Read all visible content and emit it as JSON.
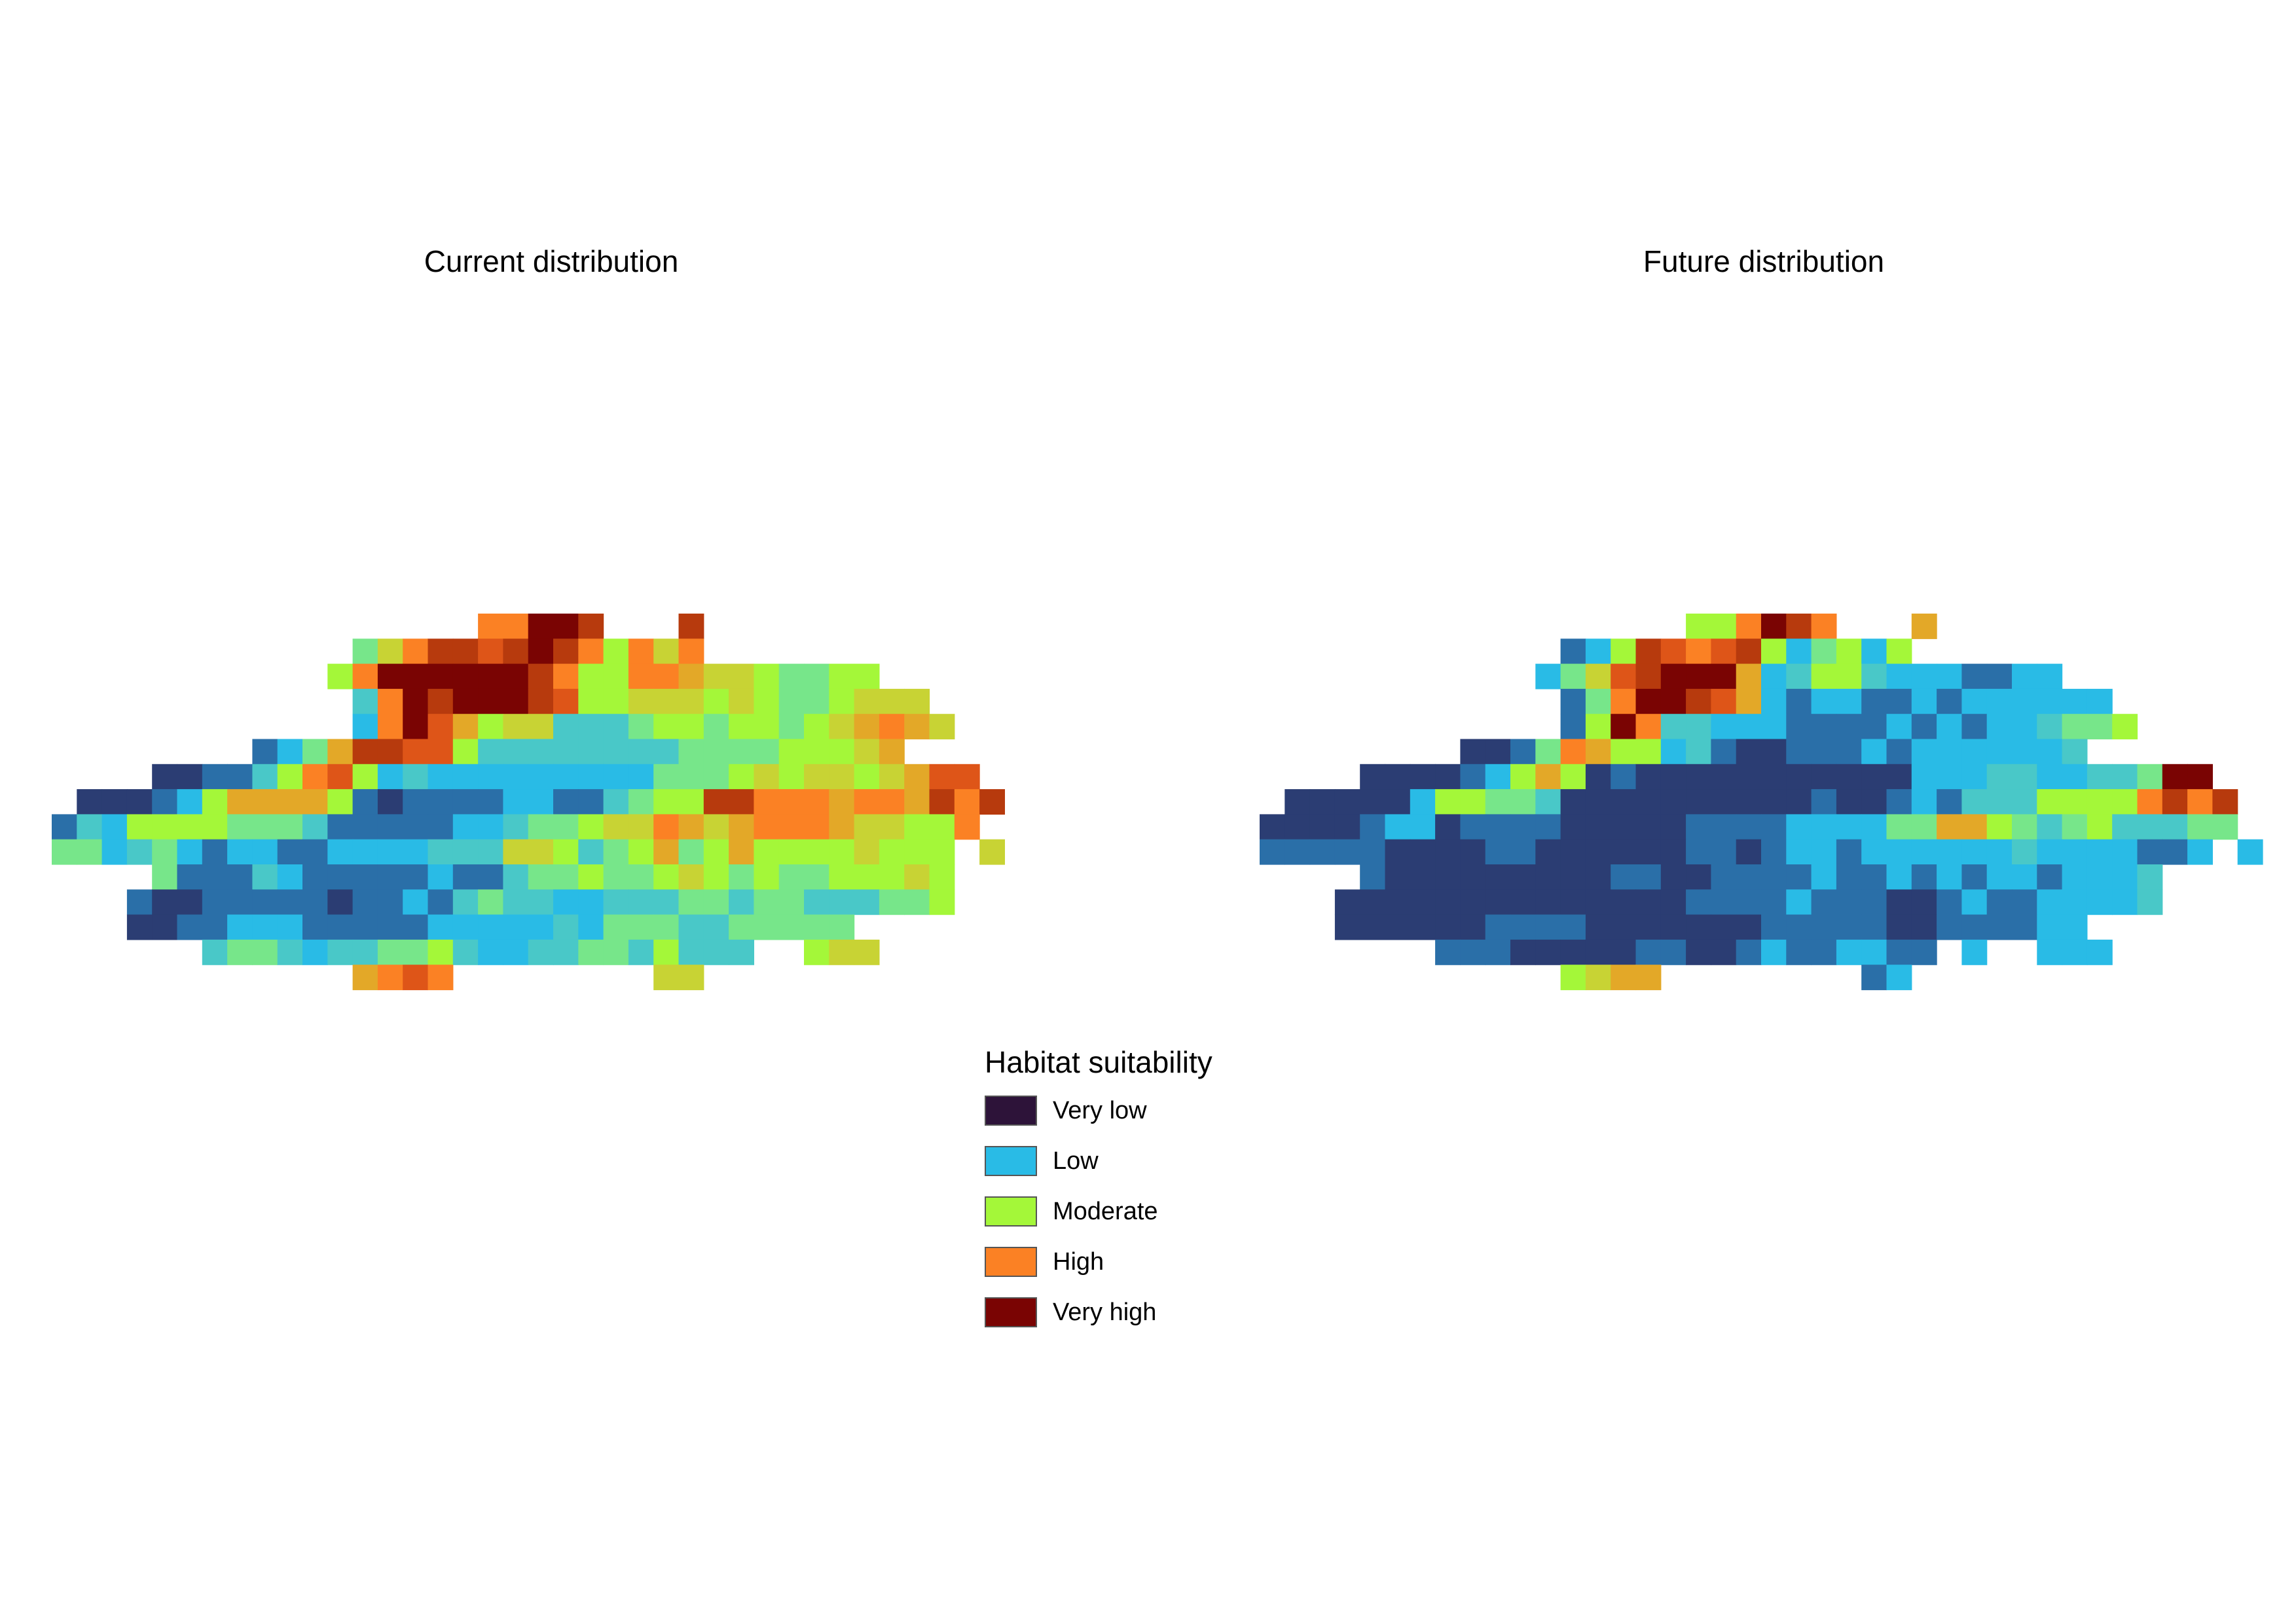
{
  "panels": [
    {
      "title": "Current distribution"
    },
    {
      "title": "Future distribution"
    }
  ],
  "legend": {
    "title": "Habitat suitability",
    "items": [
      {
        "label": "Very low",
        "color": "#2d1339"
      },
      {
        "label": "Low",
        "color": "#29bbe6"
      },
      {
        "label": "Moderate",
        "color": "#a4f739"
      },
      {
        "label": "High",
        "color": "#fb8124"
      },
      {
        "label": "Very high",
        "color": "#7a0403"
      }
    ]
  },
  "palette": [
    "#2e1440",
    "#2b3d73",
    "#2a6fa8",
    "#29bbe6",
    "#49c8c8",
    "#77e68a",
    "#a4f739",
    "#c8d334",
    "#e3a828",
    "#fb8124",
    "#de5518",
    "#b73a0d",
    "#7a0403"
  ],
  "chart_data": [
    {
      "type": "heatmap",
      "title": "Current distribution",
      "grid_rows": [
        "r0",
        "r1",
        "r2",
        "r3",
        "r4",
        "r5",
        "r6",
        "r7",
        "r8",
        "r9",
        "r10",
        "r11",
        "r12",
        "r13",
        "r14"
      ],
      "value_scale": "0 = very low ... 12 = very high; null = no data",
      "cells": [
        [
          null,
          null,
          null,
          null,
          null,
          null,
          null,
          null,
          null,
          null,
          null,
          null,
          null,
          null,
          null,
          null,
          null,
          9,
          9,
          12,
          12,
          11,
          null,
          null,
          null,
          11,
          null,
          null,
          null,
          null,
          null,
          null,
          null,
          null,
          null,
          null,
          null
        ],
        [
          null,
          null,
          null,
          null,
          null,
          null,
          null,
          null,
          null,
          null,
          null,
          null,
          5,
          7,
          9,
          11,
          11,
          10,
          11,
          12,
          11,
          9,
          6,
          9,
          7,
          9,
          null,
          null,
          null,
          null,
          null,
          null,
          null,
          null,
          null,
          null,
          null
        ],
        [
          null,
          null,
          null,
          null,
          null,
          null,
          null,
          null,
          null,
          null,
          null,
          6,
          9,
          12,
          12,
          12,
          12,
          12,
          12,
          11,
          9,
          6,
          6,
          9,
          9,
          8,
          7,
          7,
          6,
          5,
          5,
          6,
          6,
          null,
          null,
          null,
          null
        ],
        [
          null,
          null,
          null,
          null,
          null,
          null,
          null,
          null,
          null,
          null,
          null,
          null,
          4,
          9,
          12,
          11,
          12,
          12,
          12,
          11,
          10,
          6,
          6,
          7,
          7,
          7,
          6,
          7,
          6,
          5,
          5,
          6,
          7,
          7,
          7,
          null,
          null
        ],
        [
          null,
          null,
          null,
          null,
          null,
          null,
          null,
          null,
          null,
          null,
          null,
          null,
          3,
          9,
          12,
          10,
          8,
          6,
          7,
          7,
          4,
          4,
          4,
          5,
          6,
          6,
          5,
          6,
          6,
          5,
          6,
          7,
          8,
          9,
          8,
          7,
          null
        ],
        [
          null,
          null,
          null,
          null,
          null,
          null,
          null,
          null,
          2,
          3,
          5,
          8,
          11,
          11,
          10,
          10,
          6,
          4,
          4,
          4,
          4,
          4,
          4,
          4,
          4,
          5,
          5,
          5,
          5,
          6,
          6,
          6,
          7,
          8,
          null,
          null,
          null
        ],
        [
          null,
          null,
          null,
          null,
          1,
          1,
          2,
          2,
          4,
          6,
          9,
          10,
          6,
          3,
          4,
          3,
          3,
          3,
          3,
          3,
          3,
          3,
          3,
          3,
          5,
          5,
          5,
          6,
          7,
          6,
          7,
          7,
          6,
          7,
          8,
          10,
          10
        ],
        [
          null,
          1,
          1,
          1,
          2,
          3,
          6,
          8,
          8,
          8,
          8,
          6,
          2,
          1,
          2,
          2,
          2,
          2,
          3,
          3,
          2,
          2,
          4,
          5,
          6,
          6,
          11,
          11,
          9,
          9,
          9,
          8,
          9,
          9,
          8,
          11,
          9,
          11
        ],
        [
          2,
          4,
          3,
          6,
          6,
          6,
          6,
          5,
          5,
          5,
          4,
          2,
          2,
          2,
          2,
          2,
          3,
          3,
          4,
          5,
          5,
          6,
          7,
          7,
          9,
          8,
          7,
          8,
          9,
          9,
          9,
          8,
          7,
          7,
          6,
          6,
          9
        ],
        [
          5,
          5,
          3,
          4,
          5,
          3,
          2,
          3,
          3,
          2,
          2,
          3,
          3,
          3,
          3,
          4,
          4,
          4,
          7,
          7,
          6,
          4,
          5,
          6,
          8,
          5,
          6,
          8,
          6,
          6,
          6,
          6,
          7,
          6,
          6,
          6,
          null,
          7
        ],
        [
          null,
          null,
          null,
          null,
          5,
          2,
          2,
          2,
          4,
          3,
          2,
          2,
          2,
          2,
          2,
          3,
          2,
          2,
          4,
          5,
          5,
          6,
          5,
          5,
          6,
          7,
          6,
          5,
          6,
          5,
          5,
          6,
          6,
          6,
          7,
          6,
          null
        ],
        [
          null,
          null,
          null,
          2,
          1,
          1,
          2,
          2,
          2,
          2,
          2,
          1,
          2,
          2,
          3,
          2,
          4,
          5,
          4,
          4,
          3,
          3,
          4,
          4,
          4,
          5,
          5,
          4,
          5,
          5,
          4,
          4,
          4,
          5,
          5,
          6,
          null
        ],
        [
          null,
          null,
          null,
          1,
          1,
          2,
          2,
          3,
          3,
          3,
          2,
          2,
          2,
          2,
          2,
          3,
          3,
          3,
          3,
          3,
          4,
          3,
          5,
          5,
          5,
          4,
          4,
          5,
          5,
          5,
          5,
          5,
          null,
          null,
          null,
          null,
          null
        ],
        [
          null,
          null,
          null,
          null,
          null,
          null,
          4,
          5,
          5,
          4,
          3,
          4,
          4,
          5,
          5,
          6,
          4,
          3,
          3,
          4,
          4,
          5,
          5,
          4,
          6,
          4,
          4,
          4,
          null,
          null,
          6,
          7,
          7,
          null,
          null,
          null,
          null
        ],
        [
          null,
          null,
          null,
          null,
          null,
          null,
          null,
          null,
          null,
          null,
          null,
          null,
          8,
          9,
          10,
          9,
          null,
          null,
          null,
          null,
          null,
          null,
          null,
          null,
          7,
          7,
          null,
          null,
          null,
          null,
          null,
          null,
          null,
          null,
          null,
          null,
          null
        ]
      ]
    },
    {
      "type": "heatmap",
      "title": "Future distribution",
      "grid_rows": [
        "r0",
        "r1",
        "r2",
        "r3",
        "r4",
        "r5",
        "r6",
        "r7",
        "r8",
        "r9",
        "r10",
        "r11",
        "r12",
        "r13",
        "r14"
      ],
      "value_scale": "0 = very low ... 12 = very high; null = no data",
      "cells": [
        [
          null,
          null,
          null,
          null,
          null,
          null,
          null,
          null,
          null,
          null,
          null,
          null,
          null,
          null,
          null,
          null,
          null,
          6,
          6,
          9,
          12,
          11,
          9,
          null,
          null,
          null,
          8,
          null,
          null,
          null,
          null,
          null,
          null,
          null,
          null,
          null,
          null
        ],
        [
          null,
          null,
          null,
          null,
          null,
          null,
          null,
          null,
          null,
          null,
          null,
          null,
          2,
          3,
          6,
          11,
          10,
          9,
          10,
          11,
          6,
          3,
          5,
          6,
          3,
          6,
          null,
          null,
          null,
          null,
          null,
          null,
          null,
          null,
          null,
          null,
          null
        ],
        [
          null,
          null,
          null,
          null,
          null,
          null,
          null,
          null,
          null,
          null,
          null,
          3,
          5,
          7,
          10,
          11,
          12,
          12,
          12,
          8,
          3,
          4,
          6,
          6,
          4,
          3,
          3,
          3,
          2,
          2,
          3,
          3,
          null,
          null,
          null,
          null,
          null
        ],
        [
          null,
          null,
          null,
          null,
          null,
          null,
          null,
          null,
          null,
          null,
          null,
          null,
          2,
          5,
          9,
          12,
          12,
          11,
          10,
          8,
          3,
          2,
          3,
          3,
          2,
          2,
          3,
          2,
          3,
          3,
          3,
          3,
          3,
          3,
          null,
          null,
          null
        ],
        [
          null,
          null,
          null,
          null,
          null,
          null,
          null,
          null,
          null,
          null,
          null,
          null,
          2,
          6,
          12,
          9,
          4,
          4,
          3,
          3,
          3,
          2,
          2,
          2,
          2,
          3,
          2,
          3,
          2,
          3,
          3,
          4,
          5,
          5,
          6,
          null,
          null
        ],
        [
          null,
          null,
          null,
          null,
          null,
          null,
          null,
          null,
          1,
          1,
          2,
          5,
          9,
          8,
          6,
          6,
          3,
          4,
          2,
          1,
          1,
          2,
          2,
          2,
          3,
          2,
          3,
          3,
          3,
          3,
          3,
          3,
          4,
          null,
          null,
          null,
          null
        ],
        [
          null,
          null,
          null,
          null,
          1,
          1,
          1,
          1,
          2,
          3,
          6,
          8,
          6,
          1,
          2,
          1,
          1,
          1,
          1,
          1,
          1,
          1,
          1,
          1,
          1,
          1,
          3,
          3,
          3,
          4,
          4,
          3,
          3,
          4,
          4,
          5,
          12,
          12
        ],
        [
          null,
          1,
          1,
          1,
          1,
          1,
          3,
          6,
          6,
          5,
          5,
          4,
          1,
          1,
          1,
          1,
          1,
          1,
          1,
          1,
          1,
          1,
          2,
          1,
          1,
          2,
          3,
          2,
          4,
          4,
          4,
          6,
          6,
          6,
          6,
          9,
          11,
          9,
          11
        ],
        [
          1,
          1,
          1,
          1,
          2,
          3,
          3,
          1,
          2,
          2,
          2,
          2,
          1,
          1,
          1,
          1,
          1,
          2,
          2,
          2,
          2,
          3,
          3,
          3,
          3,
          5,
          5,
          8,
          8,
          6,
          5,
          4,
          5,
          6,
          4,
          4,
          4,
          5,
          5,
          null
        ],
        [
          2,
          2,
          2,
          2,
          2,
          1,
          1,
          1,
          1,
          2,
          2,
          1,
          1,
          1,
          1,
          1,
          1,
          2,
          2,
          1,
          2,
          3,
          3,
          2,
          3,
          3,
          3,
          3,
          3,
          3,
          4,
          3,
          3,
          3,
          3,
          2,
          2,
          3,
          null,
          3
        ],
        [
          null,
          null,
          null,
          null,
          2,
          1,
          1,
          1,
          1,
          1,
          1,
          1,
          1,
          1,
          2,
          2,
          1,
          1,
          2,
          2,
          2,
          2,
          3,
          2,
          2,
          3,
          2,
          3,
          2,
          3,
          3,
          2,
          3,
          3,
          3,
          4,
          null
        ],
        [
          null,
          null,
          null,
          1,
          1,
          1,
          1,
          1,
          1,
          1,
          1,
          1,
          1,
          1,
          1,
          1,
          1,
          2,
          2,
          2,
          2,
          3,
          2,
          2,
          2,
          1,
          1,
          2,
          3,
          2,
          2,
          3,
          3,
          3,
          3,
          4,
          null
        ],
        [
          null,
          null,
          null,
          1,
          1,
          1,
          1,
          1,
          1,
          2,
          2,
          2,
          2,
          1,
          1,
          1,
          1,
          1,
          1,
          1,
          2,
          2,
          2,
          2,
          2,
          1,
          1,
          2,
          2,
          2,
          2,
          3,
          3,
          null,
          null,
          null,
          null
        ],
        [
          null,
          null,
          null,
          null,
          null,
          null,
          null,
          2,
          2,
          2,
          1,
          1,
          1,
          1,
          1,
          2,
          2,
          1,
          1,
          2,
          3,
          2,
          2,
          3,
          3,
          2,
          2,
          null,
          3,
          null,
          null,
          3,
          3,
          3,
          null,
          null,
          null
        ],
        [
          null,
          null,
          null,
          null,
          null,
          null,
          null,
          null,
          null,
          null,
          null,
          null,
          6,
          7,
          8,
          8,
          null,
          null,
          null,
          null,
          null,
          null,
          null,
          null,
          2,
          3,
          null,
          null,
          null,
          null,
          null,
          null,
          null,
          null,
          null,
          null,
          null
        ]
      ]
    }
  ]
}
